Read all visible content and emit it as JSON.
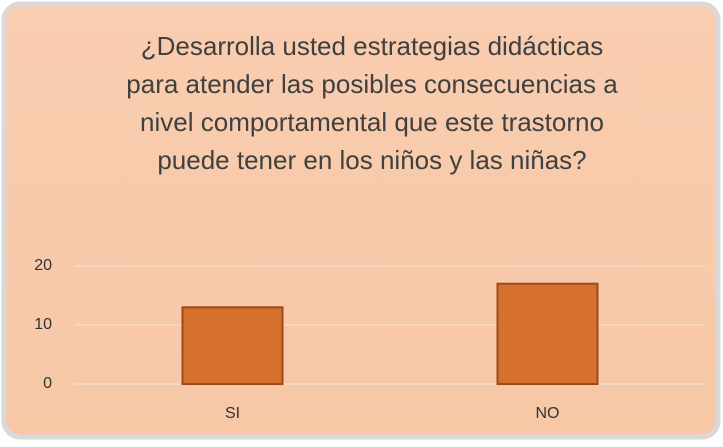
{
  "chart_data": {
    "type": "bar",
    "title": [
      "¿Desarrolla usted estrategias didácticas",
      "para atender las posibles consecuencias a",
      "nivel comportamental que este trastorno",
      "puede tener en los niños y las niñas?"
    ],
    "categories": [
      "SI",
      "NO"
    ],
    "values": [
      13,
      17
    ],
    "color": "#d5702f",
    "ylim": [
      0,
      20
    ],
    "yticks": [
      0,
      10,
      20
    ],
    "grid": true
  }
}
